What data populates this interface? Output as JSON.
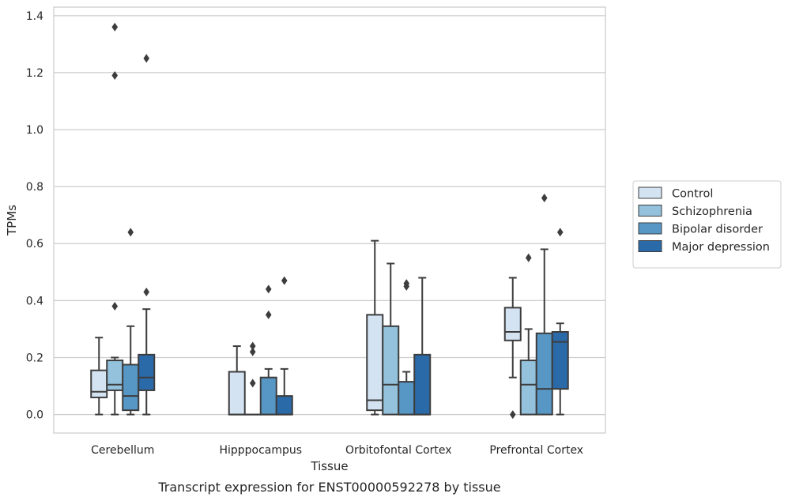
{
  "chart_data": {
    "type": "box",
    "xlabel": "Tissue",
    "ylabel": "TPMs",
    "caption": "Transcript expression for ENST00000592278 by tissue",
    "ylim": [
      -0.065,
      1.43
    ],
    "yticks": [
      0.0,
      0.2,
      0.4,
      0.6,
      0.8,
      1.0,
      1.2,
      1.4
    ],
    "ytick_labels": [
      "0.0",
      "0.2",
      "0.4",
      "0.6",
      "0.8",
      "1.0",
      "1.2",
      "1.4"
    ],
    "grid": "horizontal",
    "legend_position": "right",
    "categories": [
      "Cerebellum",
      "Hipppocampus",
      "Orbitofontal Cortex",
      "Prefrontal Cortex"
    ],
    "series": [
      {
        "name": "Control",
        "color": "#d4e3f2",
        "boxes": [
          {
            "whislo": 0.0,
            "q1": 0.06,
            "med": 0.08,
            "q3": 0.155,
            "whishi": 0.27,
            "fliers": []
          },
          {
            "whislo": 0.0,
            "q1": 0.0,
            "med": 0.0,
            "q3": 0.15,
            "whishi": 0.24,
            "fliers": []
          },
          {
            "whislo": 0.0,
            "q1": 0.015,
            "med": 0.05,
            "q3": 0.35,
            "whishi": 0.61,
            "fliers": []
          },
          {
            "whislo": 0.13,
            "q1": 0.26,
            "med": 0.29,
            "q3": 0.375,
            "whishi": 0.48,
            "fliers": [
              0.0
            ]
          }
        ]
      },
      {
        "name": "Schizophrenia",
        "color": "#94c1dc",
        "boxes": [
          {
            "whislo": 0.0,
            "q1": 0.085,
            "med": 0.105,
            "q3": 0.19,
            "whishi": 0.2,
            "fliers": [
              0.38,
              1.19,
              1.36
            ]
          },
          {
            "whislo": 0.0,
            "q1": 0.0,
            "med": 0.0,
            "q3": 0.0,
            "whishi": 0.0,
            "fliers": [
              0.11,
              0.22,
              0.24
            ]
          },
          {
            "whislo": 0.0,
            "q1": 0.0,
            "med": 0.105,
            "q3": 0.31,
            "whishi": 0.53,
            "fliers": []
          },
          {
            "whislo": 0.0,
            "q1": 0.0,
            "med": 0.105,
            "q3": 0.19,
            "whishi": 0.3,
            "fliers": [
              0.55
            ]
          }
        ]
      },
      {
        "name": "Bipolar disorder",
        "color": "#5797c6",
        "boxes": [
          {
            "whislo": 0.0,
            "q1": 0.015,
            "med": 0.065,
            "q3": 0.175,
            "whishi": 0.31,
            "fliers": [
              0.64
            ]
          },
          {
            "whislo": 0.0,
            "q1": 0.0,
            "med": 0.0,
            "q3": 0.13,
            "whishi": 0.16,
            "fliers": [
              0.35,
              0.44
            ]
          },
          {
            "whislo": 0.0,
            "q1": 0.0,
            "med": 0.0,
            "q3": 0.115,
            "whishi": 0.15,
            "fliers": [
              0.45,
              0.46
            ]
          },
          {
            "whislo": 0.0,
            "q1": 0.0,
            "med": 0.09,
            "q3": 0.285,
            "whishi": 0.58,
            "fliers": [
              0.76
            ]
          }
        ]
      },
      {
        "name": "Major depression",
        "color": "#2b6aa9",
        "boxes": [
          {
            "whislo": 0.0,
            "q1": 0.085,
            "med": 0.13,
            "q3": 0.21,
            "whishi": 0.37,
            "fliers": [
              0.43,
              1.25
            ]
          },
          {
            "whislo": 0.0,
            "q1": 0.0,
            "med": 0.0,
            "q3": 0.065,
            "whishi": 0.16,
            "fliers": [
              0.47
            ]
          },
          {
            "whislo": 0.0,
            "q1": 0.0,
            "med": 0.0,
            "q3": 0.21,
            "whishi": 0.48,
            "fliers": []
          },
          {
            "whislo": 0.0,
            "q1": 0.09,
            "med": 0.255,
            "q3": 0.29,
            "whishi": 0.32,
            "fliers": [
              0.64
            ]
          }
        ]
      }
    ]
  }
}
